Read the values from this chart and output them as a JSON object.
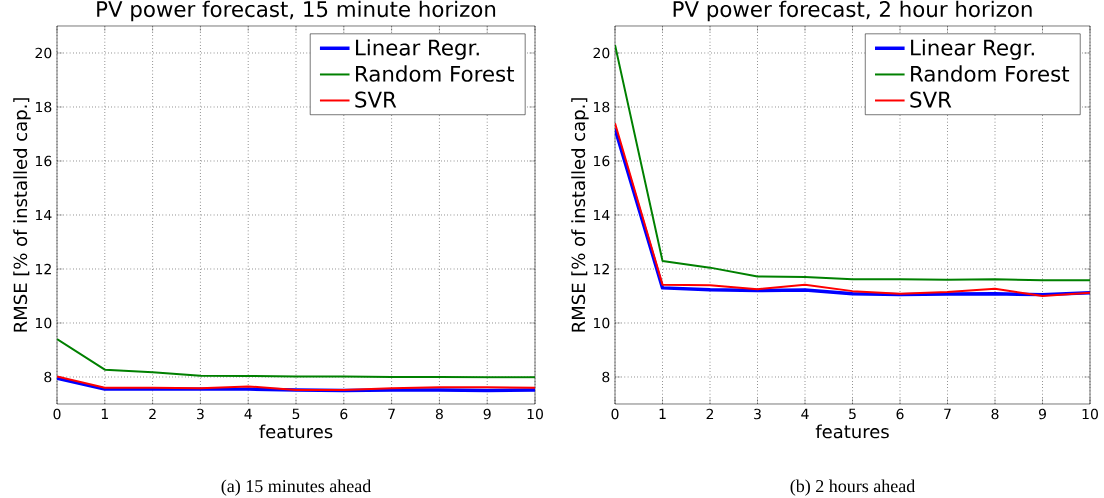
{
  "chart_data": [
    {
      "type": "line",
      "title": "PV power forecast, 15 minute horizon",
      "xlabel": "features",
      "ylabel": "RMSE [% of installed cap.]",
      "x": [
        0,
        1,
        2,
        3,
        4,
        5,
        6,
        7,
        8,
        9,
        10
      ],
      "xlim": [
        0,
        10
      ],
      "xticks": [
        0,
        1,
        2,
        3,
        4,
        5,
        6,
        7,
        8,
        9,
        10
      ],
      "ylim": [
        7,
        21
      ],
      "yticks": [
        8,
        10,
        12,
        14,
        16,
        18,
        20
      ],
      "grid": true,
      "legend": "top right",
      "annotations": [
        "(a) 15 minutes ahead"
      ],
      "series": [
        {
          "name": "Linear Regr.",
          "color": "#0000ff",
          "values": [
            7.95,
            7.55,
            7.55,
            7.55,
            7.55,
            7.52,
            7.5,
            7.52,
            7.52,
            7.5,
            7.52
          ]
        },
        {
          "name": "Random Forest",
          "color": "#008000",
          "values": [
            9.4,
            8.27,
            8.18,
            8.05,
            8.04,
            8.02,
            8.02,
            8.0,
            8.0,
            7.99,
            7.99
          ]
        },
        {
          "name": "SVR",
          "color": "#ff0000",
          "values": [
            8.02,
            7.6,
            7.6,
            7.58,
            7.65,
            7.52,
            7.52,
            7.58,
            7.62,
            7.62,
            7.6
          ]
        }
      ]
    },
    {
      "type": "line",
      "title": "PV power forecast, 2 hour horizon",
      "xlabel": "features",
      "ylabel": "RMSE [% of installed cap.]",
      "x": [
        0,
        1,
        2,
        3,
        4,
        5,
        6,
        7,
        8,
        9,
        10
      ],
      "xlim": [
        0,
        10
      ],
      "xticks": [
        0,
        1,
        2,
        3,
        4,
        5,
        6,
        7,
        8,
        9,
        10
      ],
      "ylim": [
        7,
        21
      ],
      "yticks": [
        8,
        10,
        12,
        14,
        16,
        18,
        20
      ],
      "grid": true,
      "legend": "top right",
      "annotations": [
        "(b) 2 hours ahead"
      ],
      "series": [
        {
          "name": "Linear Regr.",
          "color": "#0000ff",
          "values": [
            17.2,
            11.3,
            11.23,
            11.2,
            11.22,
            11.08,
            11.05,
            11.07,
            11.08,
            11.05,
            11.12
          ]
        },
        {
          "name": "Random Forest",
          "color": "#008000",
          "values": [
            20.3,
            12.3,
            12.05,
            11.72,
            11.7,
            11.62,
            11.62,
            11.6,
            11.62,
            11.58,
            11.58
          ]
        },
        {
          "name": "SVR",
          "color": "#ff0000",
          "values": [
            17.4,
            11.42,
            11.4,
            11.25,
            11.42,
            11.18,
            11.08,
            11.15,
            11.27,
            11.0,
            11.12
          ]
        }
      ]
    }
  ]
}
